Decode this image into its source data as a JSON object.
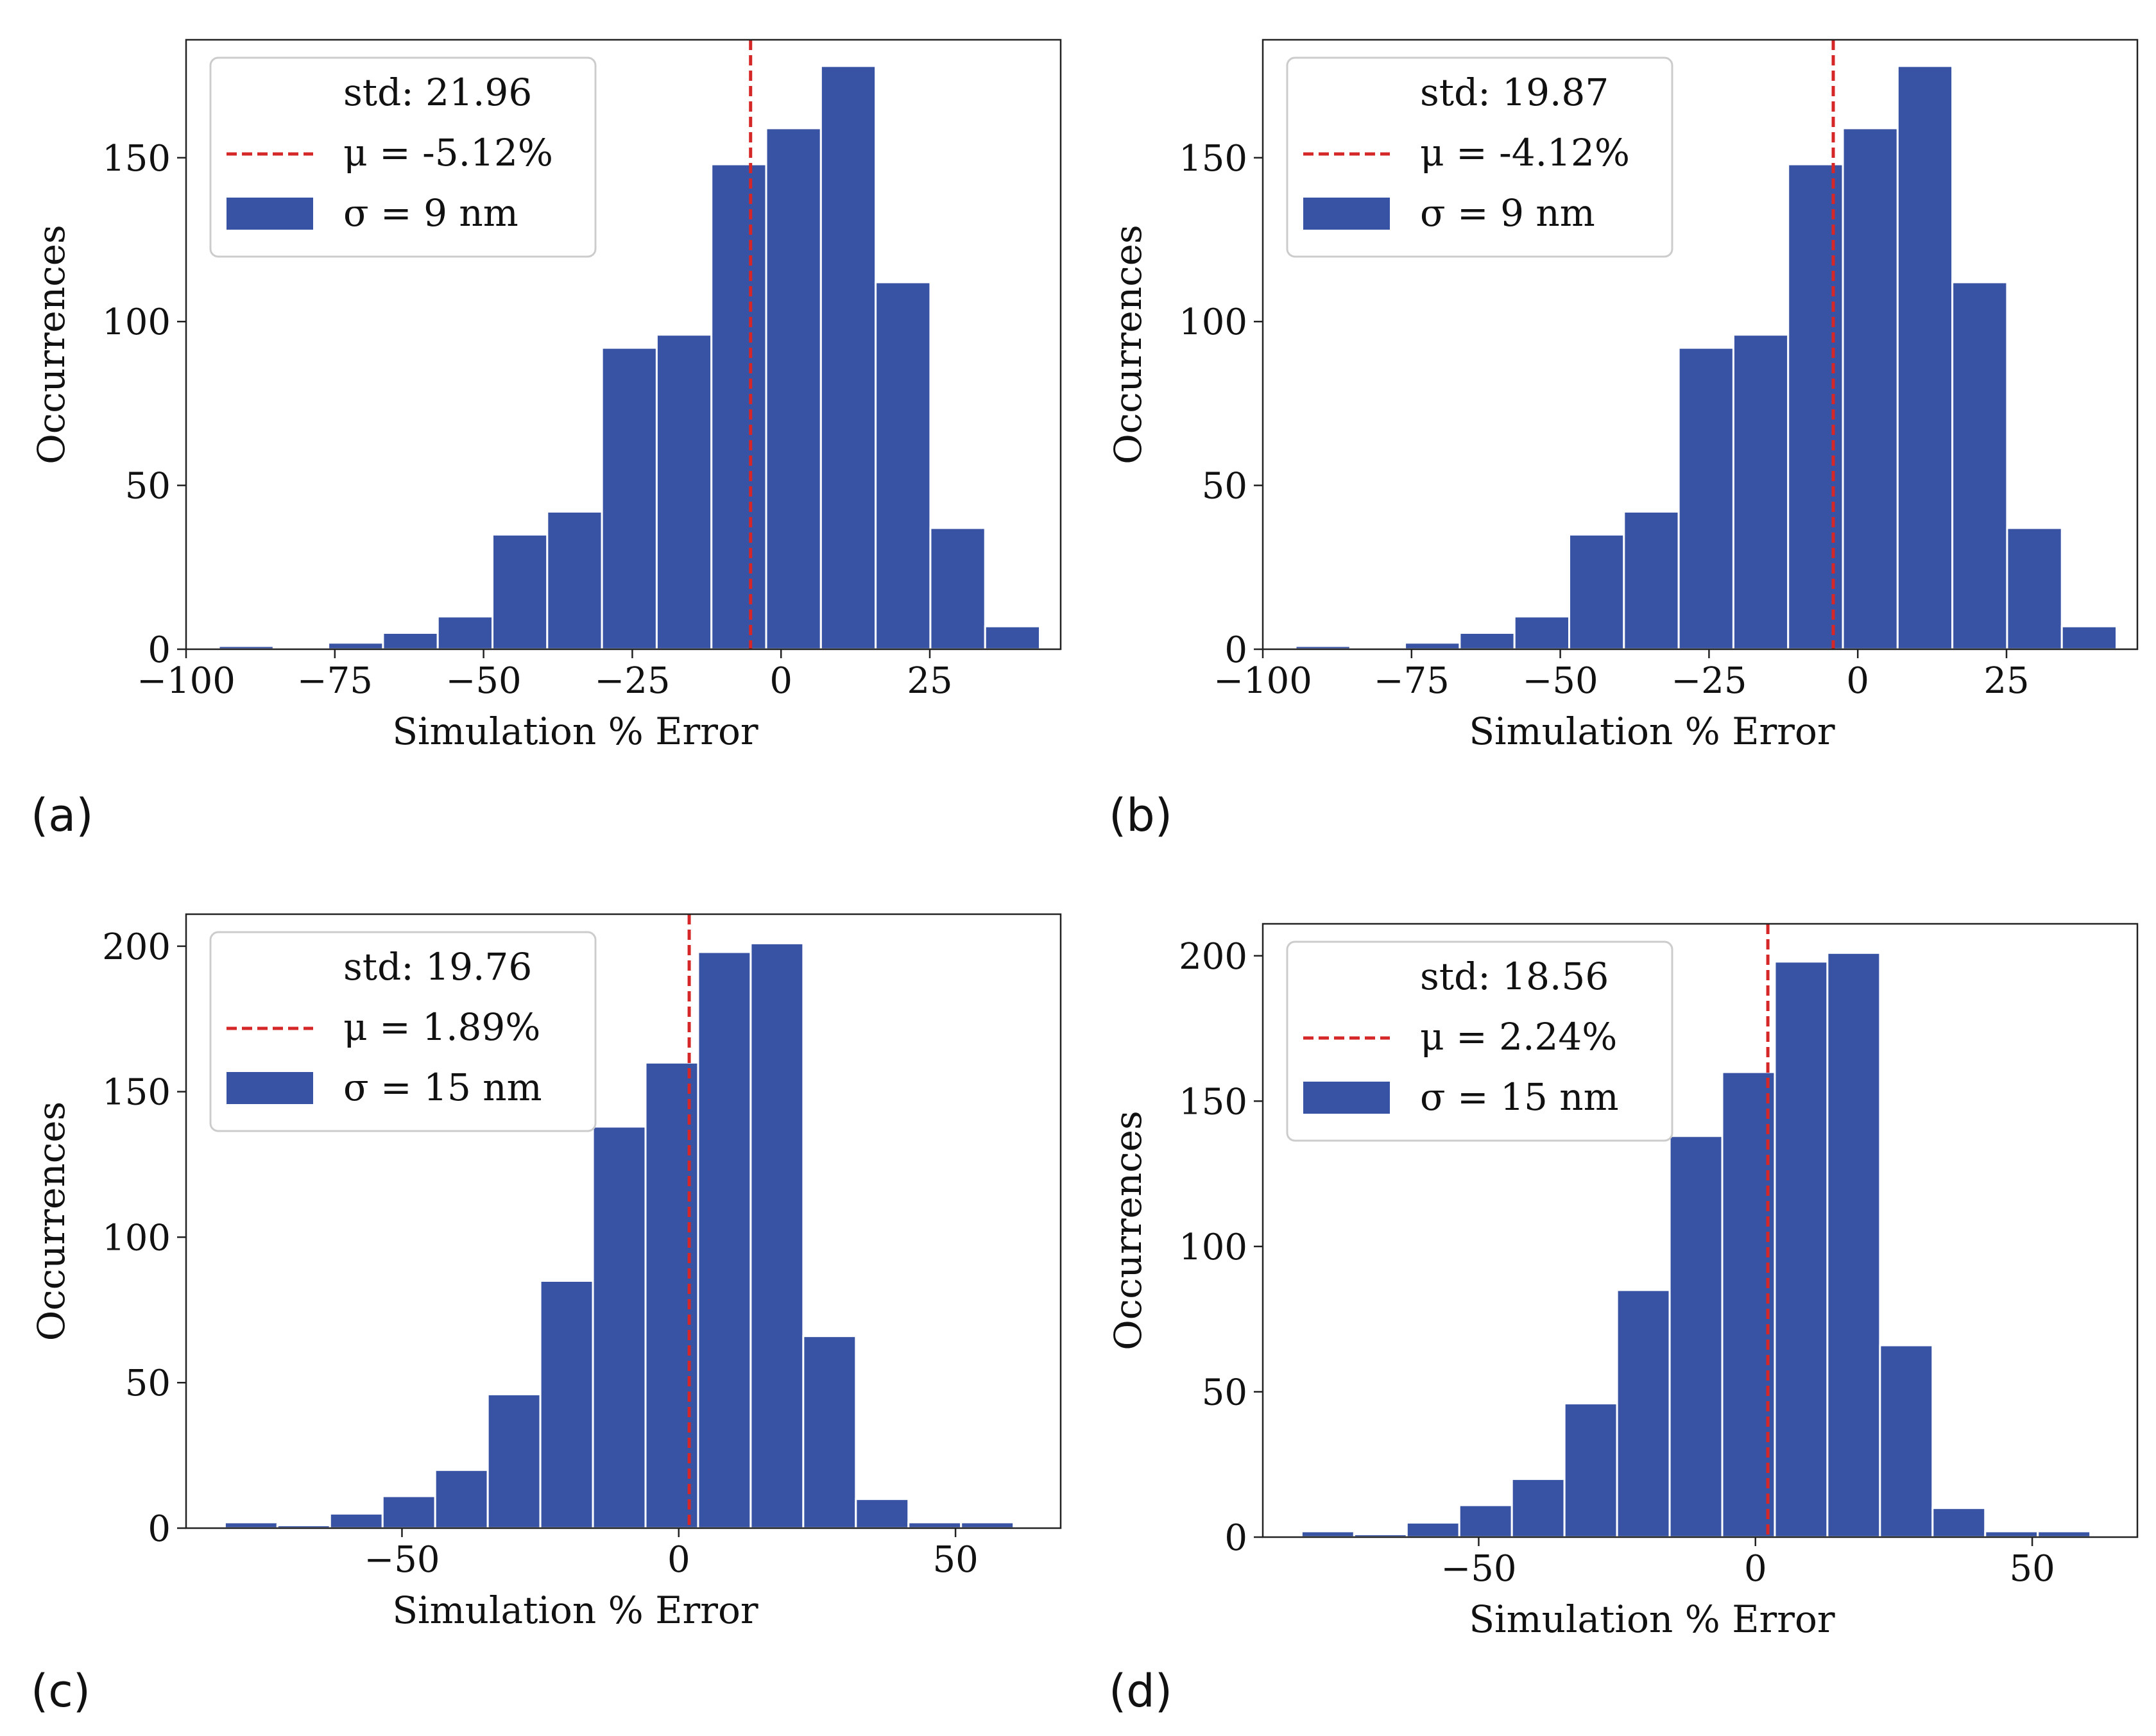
{
  "figure": {
    "title": ""
  },
  "chart_data": [
    {
      "type": "histogram",
      "panel": "(a)",
      "title": "",
      "xlabel": "Simulation % Error",
      "ylabel": "Occurrences",
      "xlim": [
        -100,
        47
      ],
      "ylim": [
        0,
        186
      ],
      "xticks": [
        -100,
        -75,
        -50,
        -25,
        0,
        25
      ],
      "xtick_labels": [
        "−100",
        "−75",
        "−50",
        "−25",
        "0",
        "25"
      ],
      "yticks": [
        0,
        50,
        100,
        150
      ],
      "ytick_labels": [
        "0",
        "50",
        "100",
        "150"
      ],
      "bin_edges": [
        -94.5,
        -85.3,
        -76.1,
        -66.9,
        -57.7,
        -48.5,
        -39.3,
        -30.1,
        -20.9,
        -11.7,
        -2.5,
        6.7,
        15.9,
        25.1,
        34.3,
        43.5
      ],
      "counts": [
        1,
        0,
        2,
        5,
        10,
        35,
        42,
        92,
        96,
        148,
        159,
        178,
        112,
        37,
        7
      ],
      "bar_color": "#3953a4",
      "mean": -5.12,
      "mean_color": "#d62728",
      "legend": {
        "placement": "upper left",
        "std_text": "std: 21.96",
        "mean_text": "μ = -5.12%",
        "sigma_text": "σ = 9 nm"
      }
    },
    {
      "type": "histogram",
      "panel": "(b)",
      "title": "",
      "xlabel": "Simulation % Error",
      "ylabel": "Occurrences",
      "xlim": [
        -100,
        47
      ],
      "ylim": [
        0,
        186
      ],
      "xticks": [
        -100,
        -75,
        -50,
        -25,
        0,
        25
      ],
      "xtick_labels": [
        "−100",
        "−75",
        "−50",
        "−25",
        "0",
        "25"
      ],
      "yticks": [
        0,
        50,
        100,
        150
      ],
      "ytick_labels": [
        "0",
        "50",
        "100",
        "150"
      ],
      "bin_edges": [
        -94.5,
        -85.3,
        -76.1,
        -66.9,
        -57.7,
        -48.5,
        -39.3,
        -30.1,
        -20.9,
        -11.7,
        -2.5,
        6.7,
        15.9,
        25.1,
        34.3,
        43.5
      ],
      "counts": [
        1,
        0,
        2,
        5,
        10,
        35,
        42,
        92,
        96,
        148,
        159,
        178,
        112,
        37,
        7
      ],
      "bar_color": "#3953a4",
      "mean": -4.12,
      "mean_color": "#d62728",
      "legend": {
        "placement": "upper left",
        "std_text": "std: 19.87",
        "mean_text": "μ = -4.12%",
        "sigma_text": "σ = 9 nm"
      }
    },
    {
      "type": "histogram",
      "panel": "(c)",
      "title": "",
      "xlabel": "Simulation % Error",
      "ylabel": "Occurrences",
      "xlim": [
        -89,
        69
      ],
      "ylim": [
        0,
        211
      ],
      "xticks": [
        -50,
        0,
        50
      ],
      "xtick_labels": [
        "−50",
        "0",
        "50"
      ],
      "yticks": [
        0,
        50,
        100,
        150,
        200
      ],
      "ytick_labels": [
        "0",
        "50",
        "100",
        "150",
        "200"
      ],
      "bin_edges": [
        -82,
        -72.5,
        -63,
        -53.5,
        -44,
        -34.5,
        -25,
        -15.5,
        -6,
        3.5,
        13,
        22.5,
        32,
        41.5,
        51,
        60.5
      ],
      "counts": [
        2,
        1,
        5,
        11,
        20,
        46,
        85,
        138,
        160,
        198,
        201,
        66,
        10,
        2,
        2
      ],
      "bar_color": "#3953a4",
      "mean": 1.89,
      "mean_color": "#d62728",
      "legend": {
        "placement": "upper left",
        "std_text": "std: 19.76",
        "mean_text": "μ = 1.89%",
        "sigma_text": "σ = 15 nm"
      }
    },
    {
      "type": "histogram",
      "panel": "(d)",
      "title": "",
      "xlabel": "Simulation % Error",
      "ylabel": "Occurrences",
      "xlim": [
        -89,
        69
      ],
      "ylim": [
        0,
        211
      ],
      "xticks": [
        -50,
        0,
        50
      ],
      "xtick_labels": [
        "−50",
        "0",
        "50"
      ],
      "yticks": [
        0,
        50,
        100,
        150,
        200
      ],
      "ytick_labels": [
        "0",
        "50",
        "100",
        "150",
        "200"
      ],
      "bin_edges": [
        -82,
        -72.5,
        -63,
        -53.5,
        -44,
        -34.5,
        -25,
        -15.5,
        -6,
        3.5,
        13,
        22.5,
        32,
        41.5,
        51,
        60.5
      ],
      "counts": [
        2,
        1,
        5,
        11,
        20,
        46,
        85,
        138,
        160,
        198,
        201,
        66,
        10,
        2,
        2
      ],
      "bar_color": "#3953a4",
      "mean": 2.24,
      "mean_color": "#d62728",
      "legend": {
        "placement": "upper left",
        "std_text": "std: 18.56",
        "mean_text": "μ = 2.24%",
        "sigma_text": "σ = 15 nm"
      }
    }
  ]
}
